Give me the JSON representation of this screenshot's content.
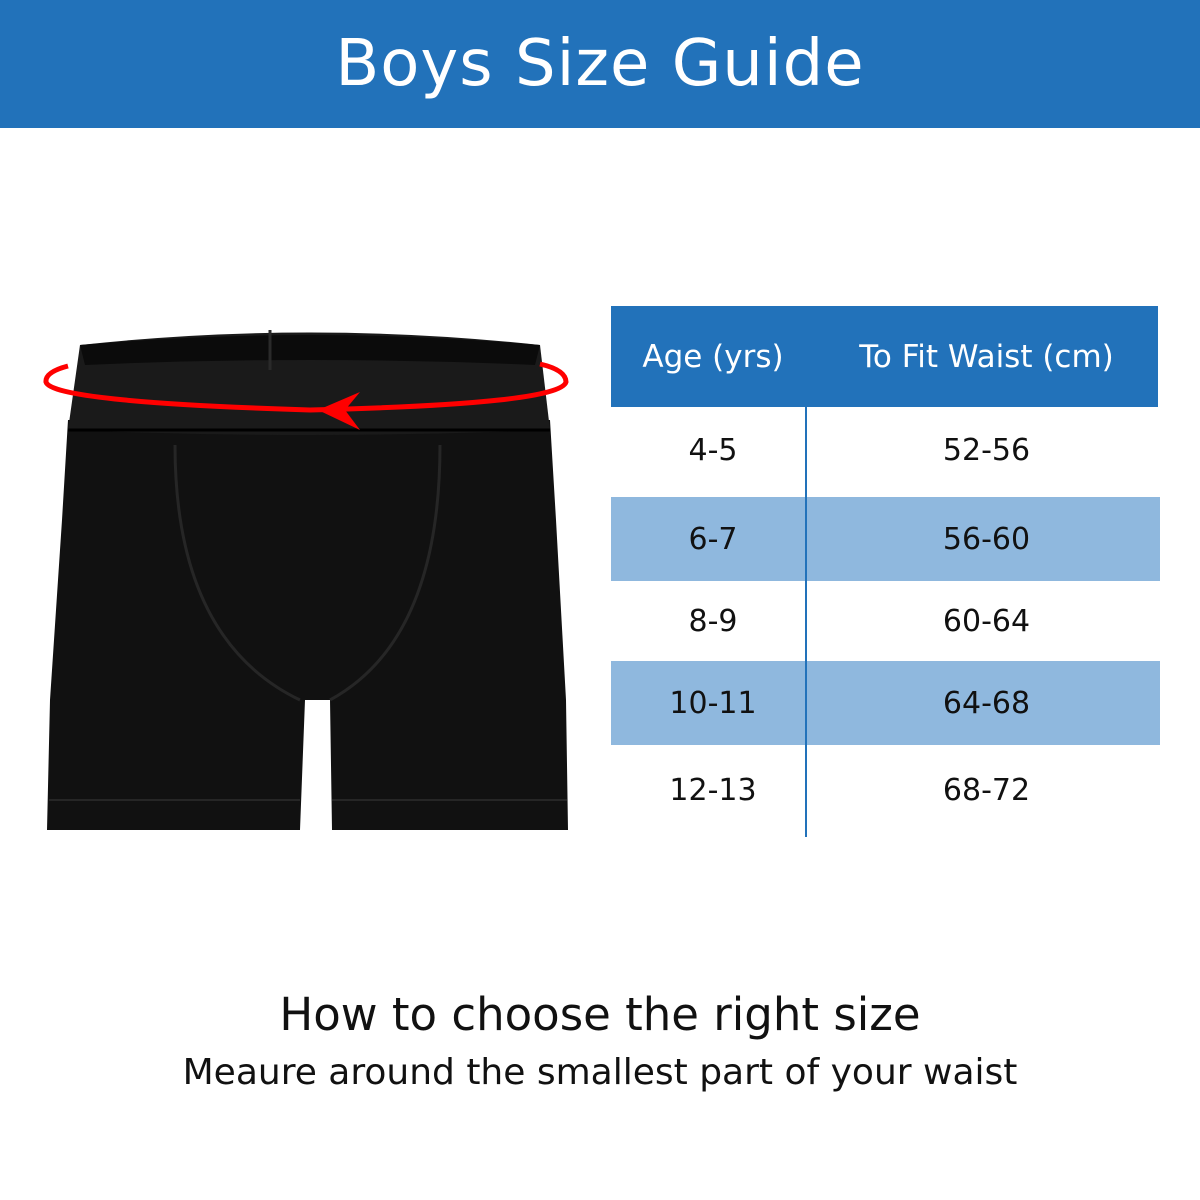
{
  "header": {
    "title": "Boys Size Guide",
    "color": "#2272BA"
  },
  "image": {
    "subject": "black-boxer-shorts",
    "measure_arrow_color": "#FF0000"
  },
  "table": {
    "columns": [
      "Age (yrs)",
      "To Fit Waist (cm)"
    ],
    "rows": [
      [
        "4-5",
        "52-56"
      ],
      [
        "6-7",
        "56-60"
      ],
      [
        "8-9",
        "60-64"
      ],
      [
        "10-11",
        "64-68"
      ],
      [
        "12-13",
        "68-72"
      ]
    ],
    "header_color": "#2272BA",
    "alt_row_color": "#8FB8DE"
  },
  "footer": {
    "title": "How to choose the right size",
    "subtitle": "Meaure around the smallest part of your waist"
  }
}
